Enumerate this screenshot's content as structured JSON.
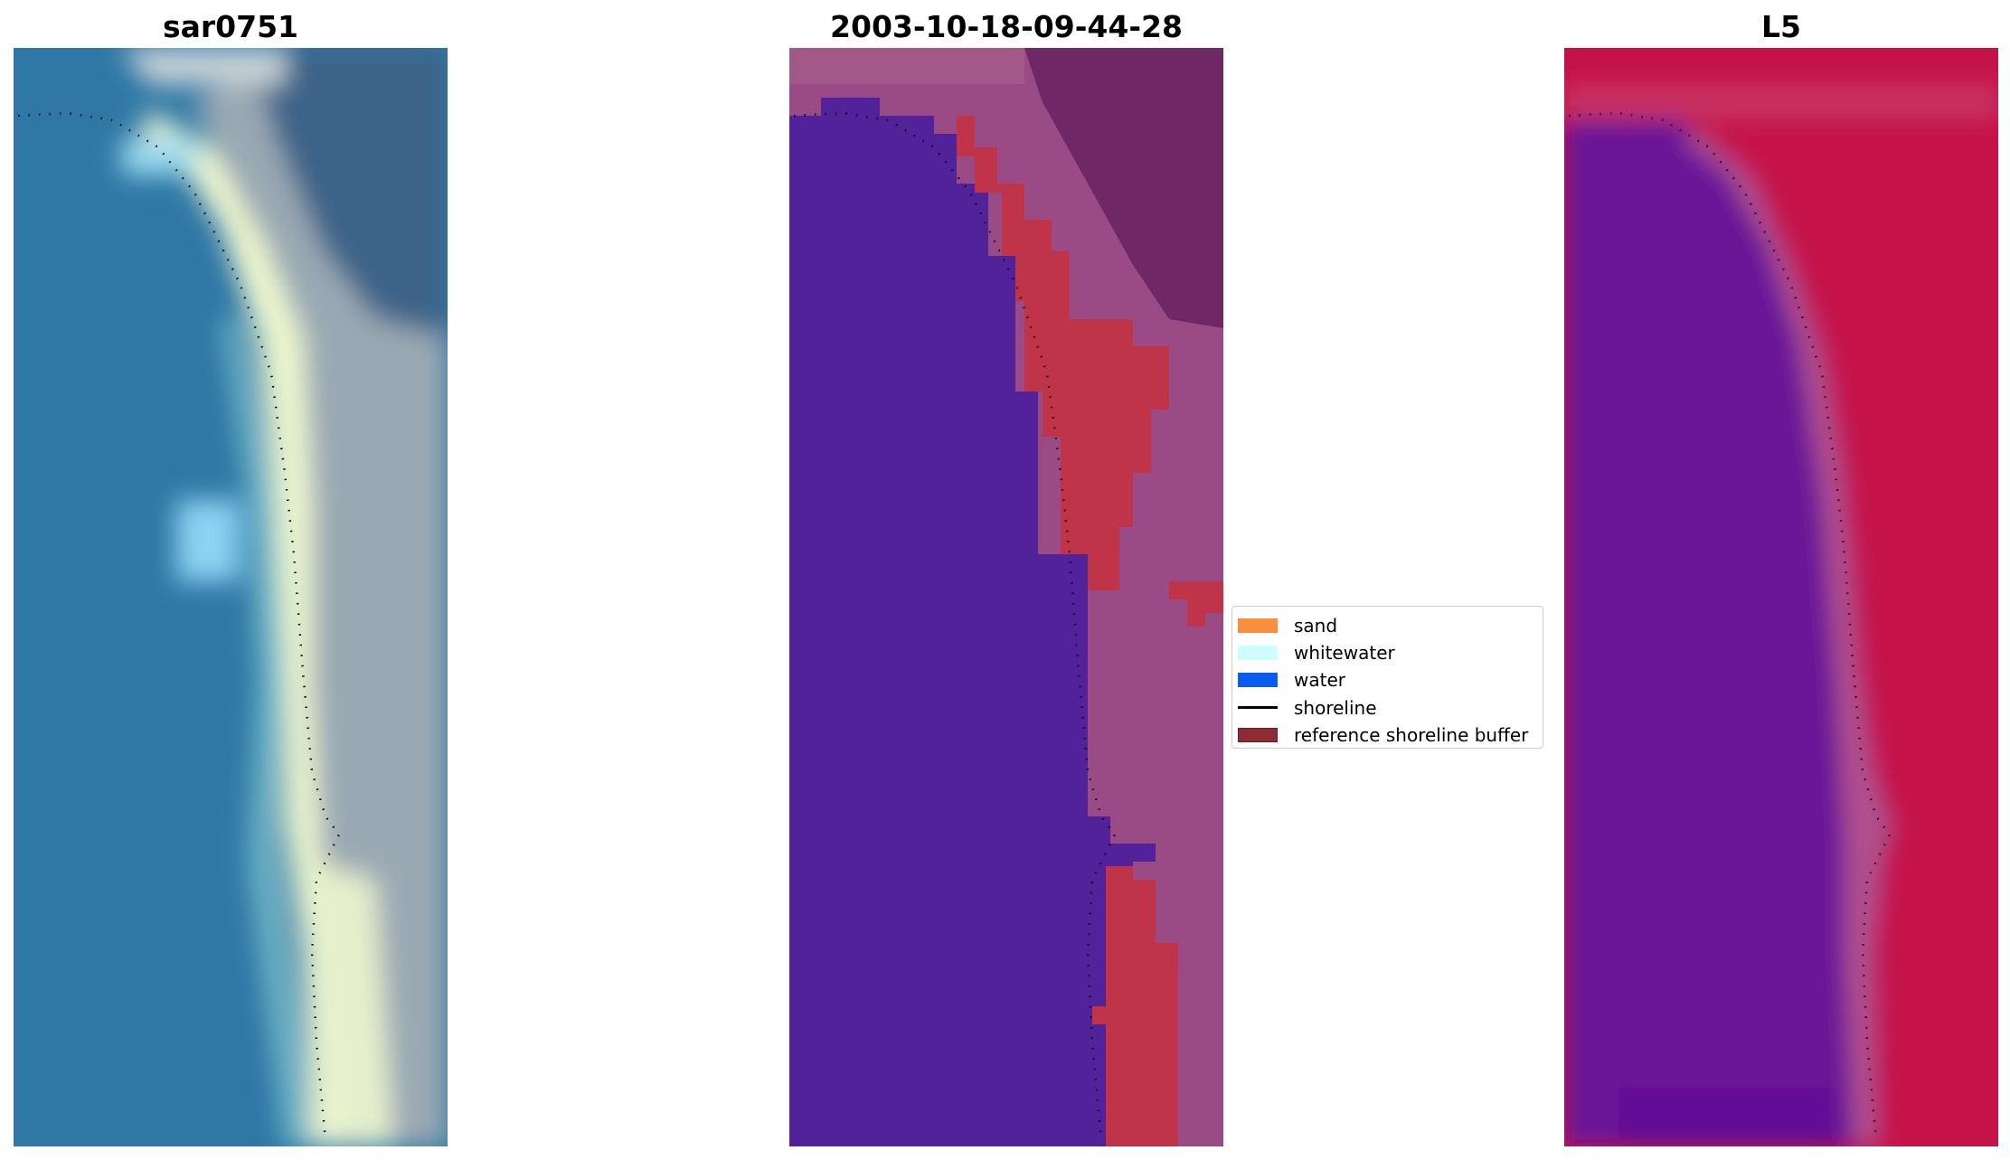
{
  "panels": [
    {
      "title": "sar0751"
    },
    {
      "title": "2003-10-18-09-44-28"
    },
    {
      "title": "L5"
    }
  ],
  "legend": {
    "items": [
      {
        "label": "sand",
        "color": "#f98f3c",
        "kind": "patch"
      },
      {
        "label": "whitewater",
        "color": "#ccfffd",
        "kind": "patch"
      },
      {
        "label": "water",
        "color": "#0b5bef",
        "kind": "patch"
      },
      {
        "label": "shoreline",
        "color": "#000000",
        "kind": "line"
      },
      {
        "label": "reference shoreline buffer",
        "color": "#8d2d33",
        "kind": "patch"
      }
    ]
  },
  "colors": {
    "rgb_water": "#2f7aa8",
    "rgb_whitewater": "#f4fbd9",
    "rgb_land": "#3f6a8f",
    "class_water": "#52229a",
    "class_land": "#9a4b85",
    "class_buffer": "#bf3448",
    "nir_water": "#6a1797",
    "nir_land": "#c5134a"
  }
}
